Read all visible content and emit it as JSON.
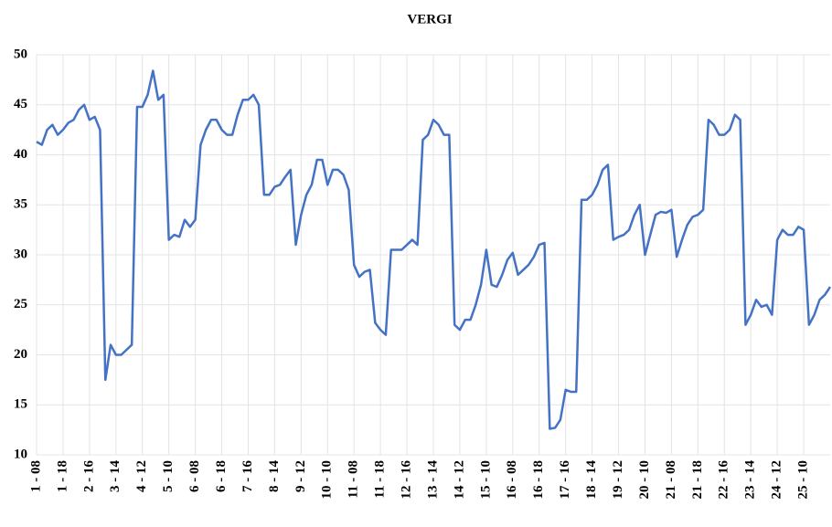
{
  "chart_data": {
    "type": "line",
    "title": "VERGI",
    "categories": [
      "1 - 08",
      null,
      null,
      null,
      null,
      "1 - 18",
      null,
      null,
      null,
      null,
      "2 - 16",
      null,
      null,
      null,
      null,
      "3 - 14",
      null,
      null,
      null,
      null,
      "4 - 12",
      null,
      null,
      null,
      null,
      "5 - 10",
      null,
      null,
      null,
      null,
      "6 - 08",
      null,
      null,
      null,
      null,
      "6 - 18",
      null,
      null,
      null,
      null,
      "7 - 16",
      null,
      null,
      null,
      null,
      "8 - 14",
      null,
      null,
      null,
      null,
      "9 - 12",
      null,
      null,
      null,
      null,
      "10 - 10",
      null,
      null,
      null,
      null,
      "11 - 08",
      null,
      null,
      null,
      null,
      "11 - 18",
      null,
      null,
      null,
      null,
      "12 - 16",
      null,
      null,
      null,
      null,
      "13 - 14",
      null,
      null,
      null,
      null,
      "14 - 12",
      null,
      null,
      null,
      null,
      "15 - 10",
      null,
      null,
      null,
      null,
      "16 - 08",
      null,
      null,
      null,
      null,
      "16 - 18",
      null,
      null,
      null,
      null,
      "17 - 16",
      null,
      null,
      null,
      null,
      "18 - 14",
      null,
      null,
      null,
      null,
      "19 - 12",
      null,
      null,
      null,
      null,
      "20 - 10",
      null,
      null,
      null,
      null,
      "21 - 08",
      null,
      null,
      null,
      null,
      "21 - 18",
      null,
      null,
      null,
      null,
      "22 - 16",
      null,
      null,
      null,
      null,
      "23 - 14",
      null,
      null,
      null,
      null,
      "24 - 12",
      null,
      null,
      null,
      null,
      "25 - 10",
      null,
      null,
      null,
      null,
      null
    ],
    "values": [
      41.3,
      41.0,
      42.5,
      43.0,
      42.0,
      42.5,
      43.2,
      43.5,
      44.5,
      45.0,
      43.5,
      43.8,
      42.5,
      17.5,
      21.0,
      20.0,
      20.0,
      20.5,
      21.0,
      44.8,
      44.8,
      46.0,
      48.4,
      45.5,
      46.0,
      31.5,
      32.0,
      31.8,
      33.5,
      32.8,
      33.5,
      41.0,
      42.5,
      43.5,
      43.5,
      42.5,
      42.0,
      42.0,
      44.0,
      45.5,
      45.5,
      46.0,
      45.0,
      36.0,
      36.0,
      36.8,
      37.0,
      37.8,
      38.5,
      31.0,
      34.0,
      36.0,
      37.0,
      39.5,
      39.5,
      37.0,
      38.5,
      38.5,
      38.0,
      36.5,
      29.0,
      27.8,
      28.3,
      28.5,
      23.2,
      22.5,
      22.0,
      30.5,
      30.5,
      30.5,
      31.0,
      31.5,
      31.0,
      41.5,
      42.0,
      43.5,
      43.0,
      42.0,
      42.0,
      23.0,
      22.5,
      23.5,
      23.5,
      25.0,
      27.0,
      30.5,
      27.0,
      26.8,
      28.0,
      29.5,
      30.2,
      28.0,
      28.5,
      29.0,
      29.8,
      31.0,
      31.2,
      12.6,
      12.7,
      13.5,
      16.5,
      16.3,
      16.3,
      35.5,
      35.5,
      36.0,
      37.0,
      38.5,
      39.0,
      31.5,
      31.8,
      32.0,
      32.5,
      34.0,
      35.0,
      30.0,
      32.0,
      34.0,
      34.3,
      34.2,
      34.5,
      29.8,
      31.5,
      33.0,
      33.8,
      34.0,
      34.5,
      43.5,
      43.0,
      42.0,
      42.0,
      42.5,
      44.0,
      43.5,
      23.0,
      24.0,
      25.5,
      24.8,
      25.0,
      24.0,
      31.5,
      32.5,
      32.0,
      32.0,
      32.8,
      32.5,
      23.0,
      24.0,
      25.5,
      26.0,
      26.8
    ],
    "color": "#4472c4",
    "ylim": [
      10,
      50
    ],
    "yticks": [
      10,
      15,
      20,
      25,
      30,
      35,
      40,
      45,
      50
    ],
    "grid": true
  }
}
